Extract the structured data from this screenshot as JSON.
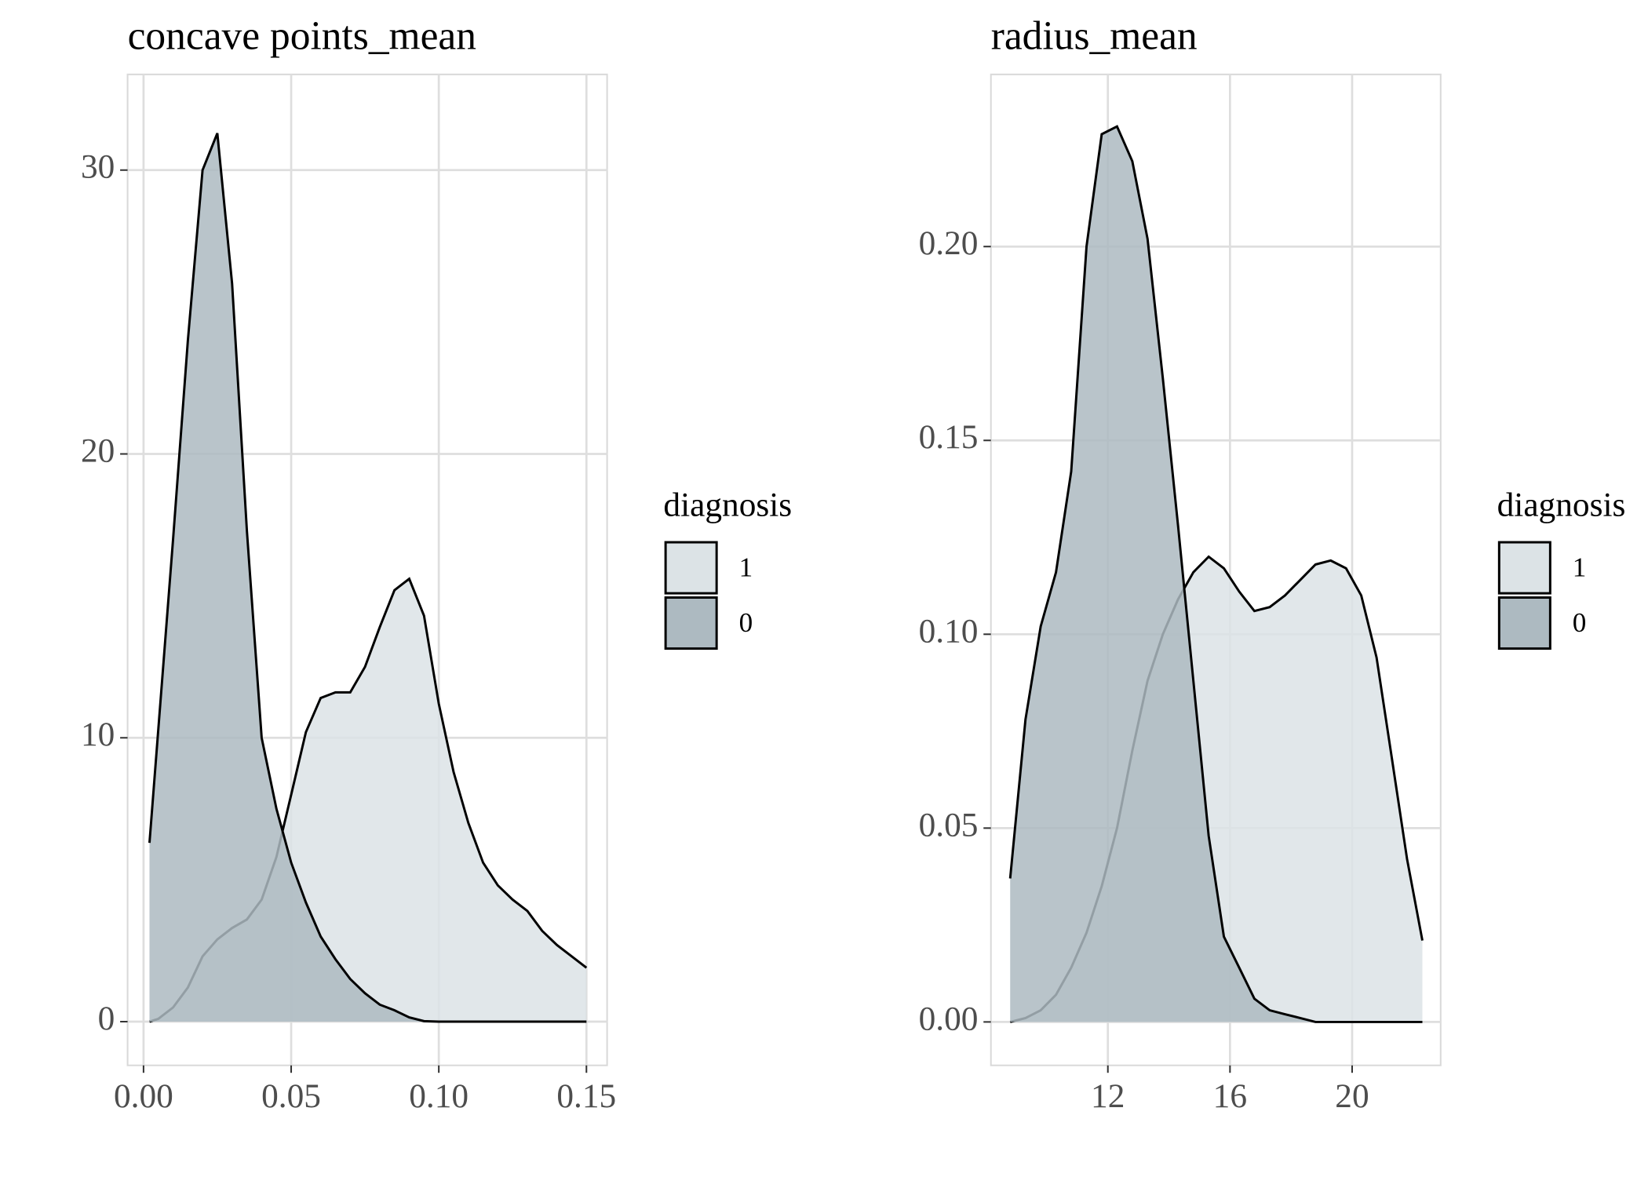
{
  "chart_data": [
    {
      "type": "density",
      "title": "concave points_mean",
      "legend_title": "diagnosis",
      "x": [
        0.002,
        0.005,
        0.01,
        0.015,
        0.02,
        0.025,
        0.03,
        0.035,
        0.04,
        0.045,
        0.05,
        0.055,
        0.06,
        0.065,
        0.07,
        0.075,
        0.08,
        0.085,
        0.09,
        0.095,
        0.1,
        0.105,
        0.11,
        0.115,
        0.12,
        0.125,
        0.13,
        0.135,
        0.14,
        0.145,
        0.15
      ],
      "series": [
        {
          "name": "1",
          "color": "#dce3e6",
          "values": [
            0,
            0.1,
            0.5,
            1.2,
            2.3,
            2.9,
            3.3,
            3.6,
            4.3,
            5.8,
            8.0,
            10.2,
            11.4,
            11.6,
            11.6,
            12.5,
            13.9,
            15.2,
            15.6,
            14.3,
            11.2,
            8.8,
            7.0,
            5.6,
            4.8,
            4.3,
            3.9,
            3.2,
            2.7,
            2.3,
            1.9
          ]
        },
        {
          "name": "0",
          "color": "#adbac1",
          "values": [
            6.3,
            10.3,
            17,
            24,
            30,
            31.3,
            26,
            17.3,
            10,
            7.5,
            5.6,
            4.2,
            3.0,
            2.2,
            1.5,
            1.0,
            0.6,
            0.4,
            0.15,
            0.02,
            0,
            0,
            0,
            0,
            0,
            0,
            0,
            0,
            0,
            0,
            0
          ]
        }
      ],
      "xlim": [
        -0.0054,
        0.157
      ],
      "ylim": [
        -1.54,
        33.37
      ],
      "xticks": [
        {
          "value": 0,
          "label": "0.00"
        },
        {
          "value": 0.05,
          "label": "0.05"
        },
        {
          "value": 0.1,
          "label": "0.10"
        },
        {
          "value": 0.15,
          "label": "0.15"
        }
      ],
      "yticks": [
        0,
        10,
        20,
        30
      ],
      "grid": true
    },
    {
      "type": "density",
      "title": "radius_mean",
      "legend_title": "diagnosis",
      "x": [
        8.8,
        9.3,
        9.8,
        10.3,
        10.8,
        11.3,
        11.8,
        12.3,
        12.8,
        13.3,
        13.8,
        14.3,
        14.8,
        15.3,
        15.8,
        16.3,
        16.8,
        17.3,
        17.8,
        18.3,
        18.8,
        19.3,
        19.8,
        20.3,
        20.8,
        21.3,
        21.8,
        22.3
      ],
      "series": [
        {
          "name": "1",
          "color": "#dce3e6",
          "values": [
            0,
            0.001,
            0.003,
            0.007,
            0.014,
            0.023,
            0.035,
            0.05,
            0.07,
            0.088,
            0.1,
            0.109,
            0.116,
            0.12,
            0.117,
            0.111,
            0.106,
            0.107,
            0.11,
            0.114,
            0.118,
            0.119,
            0.117,
            0.11,
            0.094,
            0.068,
            0.042,
            0.021
          ]
        },
        {
          "name": "0",
          "color": "#adbac1",
          "values": [
            0.037,
            0.078,
            0.102,
            0.116,
            0.142,
            0.2,
            0.229,
            0.231,
            0.222,
            0.202,
            0.166,
            0.128,
            0.088,
            0.048,
            0.022,
            0.014,
            0.006,
            0.003,
            0.002,
            0.001,
            0,
            0,
            0,
            0,
            0,
            0,
            0,
            0
          ]
        }
      ],
      "xlim": [
        8.17,
        22.9
      ],
      "ylim": [
        -0.0112,
        0.2444
      ],
      "xticks": [
        12,
        16,
        20
      ],
      "yticks": [
        {
          "value": 0,
          "label": "0.00"
        },
        {
          "value": 0.05,
          "label": "0.05"
        },
        {
          "value": 0.1,
          "label": "0.10"
        },
        {
          "value": 0.15,
          "label": "0.15"
        },
        {
          "value": 0.2,
          "label": "0.20"
        }
      ],
      "grid": true
    }
  ]
}
